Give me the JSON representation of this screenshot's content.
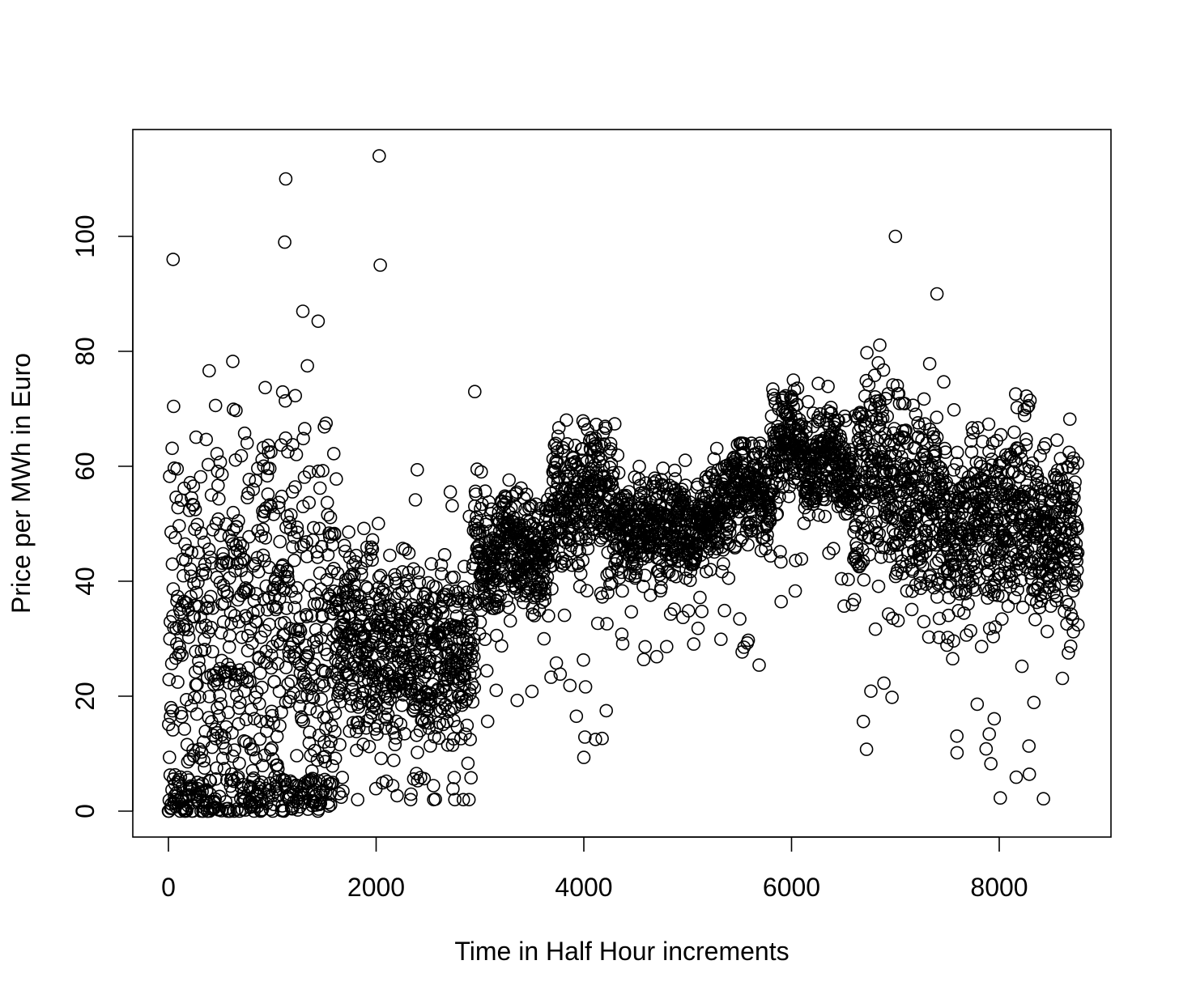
{
  "chart_data": {
    "type": "scatter",
    "title": "",
    "xlabel": "Time in Half Hour increments",
    "ylabel": "Price per MWh in Euro",
    "xlim": [
      0,
      8760
    ],
    "ylim": [
      0,
      114
    ],
    "x_ticks": [
      0,
      2000,
      4000,
      6000,
      8000
    ],
    "y_ticks": [
      0,
      20,
      40,
      60,
      80,
      100
    ],
    "x_tick_labels": [
      "0",
      "2000",
      "4000",
      "6000",
      "8000"
    ],
    "y_tick_labels": [
      "0",
      "20",
      "40",
      "60",
      "80",
      "100"
    ],
    "marker": "open-circle",
    "grid": false,
    "legend": "none",
    "n_points": 8760,
    "approximate_point_summary": "8760 prices sampled one per half-hour; dense cloud 0–75 from x 0–1600 with many zeros, 0–45 from x 1600–2900, band 40–70 from x 3000–6500 with peak ~70 near x 4100, high 60–80 around x 6500–7400, 30–70 with dips to ~5 after x 7500",
    "notable_points": [
      {
        "x": 2030,
        "y": 114
      },
      {
        "x": 1130,
        "y": 110
      },
      {
        "x": 1120,
        "y": 99
      },
      {
        "x": 7000,
        "y": 100
      },
      {
        "x": 45,
        "y": 96
      },
      {
        "x": 2040,
        "y": 95
      },
      {
        "x": 2950,
        "y": 73
      },
      {
        "x": 7400,
        "y": 90
      }
    ],
    "segments": [
      {
        "x0": 0,
        "x1": 1600,
        "center": 30,
        "spread": 28,
        "min": 0,
        "max": 90,
        "zero_share": 0.25
      },
      {
        "x0": 1600,
        "x1": 2950,
        "center": 28,
        "spread": 13,
        "min": 2,
        "max": 60,
        "zero_share": 0.02
      },
      {
        "x0": 2950,
        "x1": 3700,
        "center": 46,
        "spread": 8,
        "min": 15,
        "max": 60,
        "zero_share": 0
      },
      {
        "x0": 3700,
        "x1": 4300,
        "center": 55,
        "spread": 9,
        "min": 7,
        "max": 70,
        "zero_share": 0
      },
      {
        "x0": 4300,
        "x1": 5800,
        "center": 50,
        "spread": 7,
        "min": 24,
        "max": 64,
        "zero_share": 0
      },
      {
        "x0": 5800,
        "x1": 6600,
        "center": 60,
        "spread": 7,
        "min": 35,
        "max": 75,
        "zero_share": 0
      },
      {
        "x0": 6600,
        "x1": 7500,
        "center": 56,
        "spread": 14,
        "min": 10,
        "max": 82,
        "zero_share": 0
      },
      {
        "x0": 7500,
        "x1": 8760,
        "center": 48,
        "spread": 13,
        "min": 2,
        "max": 73,
        "zero_share": 0
      }
    ]
  }
}
